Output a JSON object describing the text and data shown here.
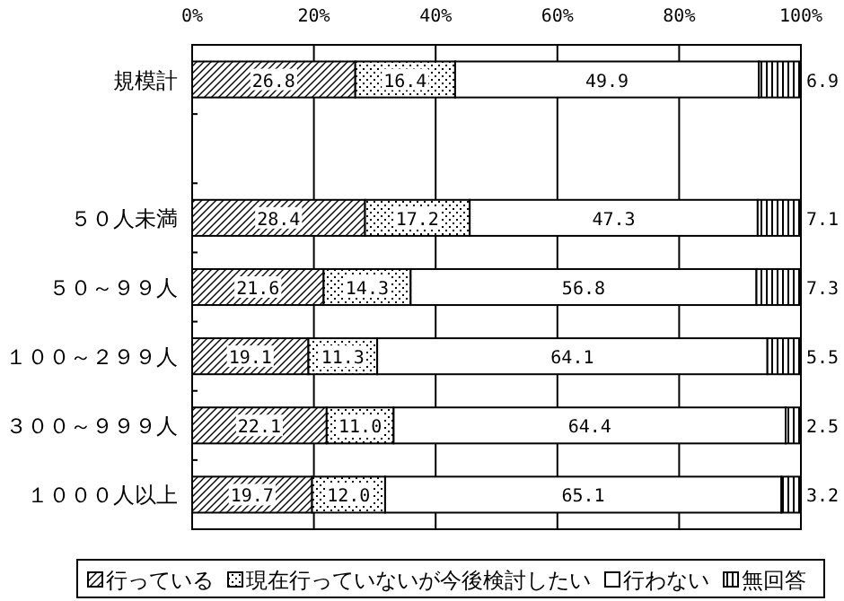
{
  "chart_data": {
    "type": "bar",
    "orientation": "horizontal",
    "stacked": true,
    "grid": "x",
    "legend": "bottom",
    "categories": [
      "規模計",
      null,
      "５０人未満",
      "５０～９９人",
      "１００～２９９人",
      "３００～９９９人",
      "１０００人以上"
    ],
    "xlim": [
      0,
      100
    ],
    "xticks": [
      {
        "value": 0,
        "label": "0%"
      },
      {
        "value": 20,
        "label": "20%"
      },
      {
        "value": 40,
        "label": "40%"
      },
      {
        "value": 60,
        "label": "60%"
      },
      {
        "value": 80,
        "label": "80%"
      },
      {
        "value": 100,
        "label": "100%"
      }
    ],
    "series": [
      {
        "name": "行っている",
        "color": "#000000",
        "values": [
          26.8,
          null,
          28.4,
          21.6,
          19.1,
          22.1,
          19.7
        ],
        "value_labels": [
          "26.8",
          null,
          "28.4",
          "21.6",
          "19.1",
          "22.1",
          "19.7"
        ]
      },
      {
        "name": "現在行っていないが今後検討したい",
        "color": "#000000",
        "values": [
          16.4,
          null,
          17.2,
          14.3,
          11.3,
          11.0,
          12.0
        ],
        "value_labels": [
          "16.4",
          null,
          "17.2",
          "14.3",
          "11.3",
          "11.0",
          "12.0"
        ]
      },
      {
        "name": "行わない",
        "color": "#000000",
        "values": [
          49.9,
          null,
          47.3,
          56.8,
          64.1,
          64.4,
          65.1
        ],
        "value_labels": [
          "49.9",
          null,
          "47.3",
          "56.8",
          "64.1",
          "64.4",
          "65.1"
        ]
      },
      {
        "name": "無回答",
        "color": "#000000",
        "values": [
          6.9,
          null,
          7.1,
          7.3,
          5.5,
          2.5,
          3.2
        ],
        "value_labels": [
          "6.9",
          null,
          "7.1",
          "7.3",
          "5.5",
          "2.5",
          "3.2"
        ]
      }
    ]
  }
}
